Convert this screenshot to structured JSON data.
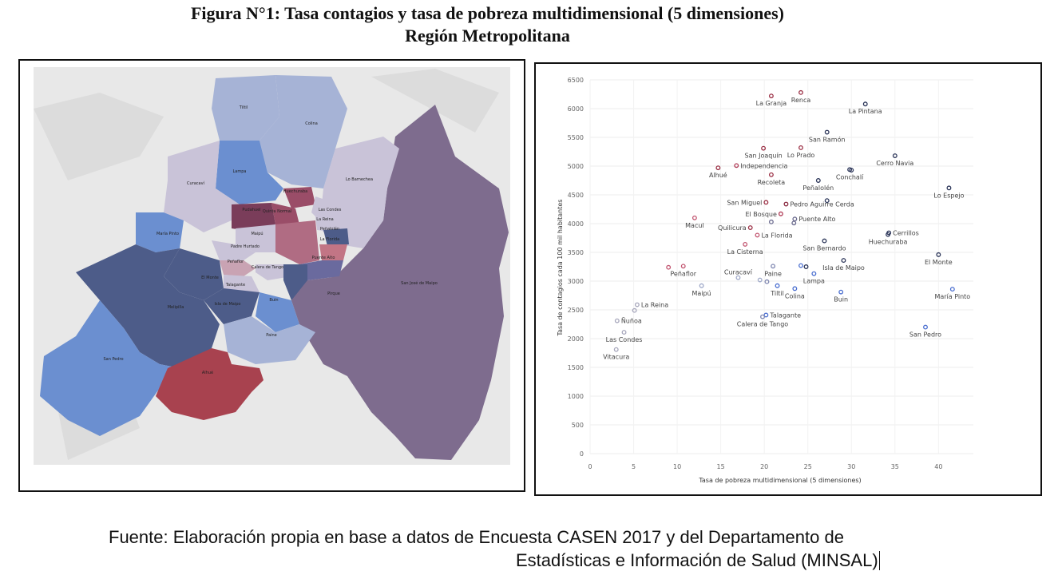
{
  "figure": {
    "title_line1": "Figura N°1: Tasa contagios y tasa de pobreza multidimensional (5 dimensiones)",
    "title_line2": "Región Metropolitana"
  },
  "source": {
    "line1": "Fuente: Elaboración propia en base a datos de Encuesta CASEN 2017 y del Departamento de",
    "line2": "Estadísticas e Información de Salud (MINSAL)"
  },
  "map": {
    "colors": {
      "high": "#a8424f",
      "dark": "#4d5c89",
      "mauve": "#7e6c8e",
      "blue": "#6b8fd0",
      "light": "#c9c3d8",
      "pale": "#a6b3d6",
      "base": "#e8e8e8"
    },
    "labels": [
      "Tiltil",
      "Colina",
      "Lampa",
      "Curacaví",
      "Lo Barnechea",
      "Huechuraba",
      "Pudahuel",
      "Quinta Normal",
      "Las Condes",
      "La Reina",
      "María Pinto",
      "Maipú",
      "Padre Hurtado",
      "Peñaflor",
      "Peñalolén",
      "La Florida",
      "Calera de Tango",
      "El Monte",
      "Talagante",
      "Puente Alto",
      "San José de Maipo",
      "Melipilla",
      "Isla de Maipo",
      "Buin",
      "Pirque",
      "Paine",
      "San Pedro",
      "Alhué"
    ]
  },
  "chart_data": {
    "type": "scatter",
    "title": "",
    "xlabel": "Tasa de pobreza multidimensional (5 dimensiones)",
    "ylabel": "Tasa de contagios cada 100 mil habitantes",
    "xlim": [
      0,
      44
    ],
    "ylim": [
      0,
      6500
    ],
    "xticks": [
      0,
      5,
      10,
      15,
      20,
      25,
      30,
      35,
      40
    ],
    "yticks": [
      0,
      500,
      1000,
      1500,
      2000,
      2500,
      3000,
      3500,
      4000,
      4500,
      5000,
      5500,
      6000,
      6500
    ],
    "grid": true,
    "legend": "none",
    "points": [
      {
        "label": "Renca",
        "x": 24.2,
        "y": 6280,
        "color": "#9b3045",
        "lp": "b"
      },
      {
        "label": "La Granja",
        "x": 20.8,
        "y": 6220,
        "color": "#9b3045",
        "lp": "b"
      },
      {
        "label": "La Pintana",
        "x": 31.6,
        "y": 6080,
        "color": "#2a3458",
        "lp": "b"
      },
      {
        "label": "San Ramón",
        "x": 27.2,
        "y": 5590,
        "color": "#2a3458",
        "lp": "b"
      },
      {
        "label": "San Joaquín",
        "x": 19.9,
        "y": 5310,
        "color": "#9b3045",
        "lp": "b"
      },
      {
        "label": "Lo Prado",
        "x": 24.2,
        "y": 5320,
        "color": "#9b3045",
        "lp": "b"
      },
      {
        "label": "Cerro Navia",
        "x": 35.0,
        "y": 5180,
        "color": "#2a3458",
        "lp": "b"
      },
      {
        "label": "Independencia",
        "x": 16.8,
        "y": 5010,
        "color": "#b03a55",
        "lp": "r"
      },
      {
        "label": "Alhué",
        "x": 14.7,
        "y": 4970,
        "color": "#9b3045",
        "lp": "b"
      },
      {
        "label": "Conchalí",
        "x": 29.8,
        "y": 4940,
        "color": "#2a3458",
        "lp": "b"
      },
      {
        "label": "Recoleta",
        "x": 20.8,
        "y": 4850,
        "color": "#9b3045",
        "lp": "b"
      },
      {
        "label": "Peñalolén",
        "x": 26.2,
        "y": 4750,
        "color": "#2a3458",
        "lp": "b"
      },
      {
        "label": "Lo Espejo",
        "x": 41.2,
        "y": 4620,
        "color": "#2a3458",
        "lp": "b"
      },
      {
        "label": "San Miguel",
        "x": 20.2,
        "y": 4370,
        "color": "#9b3045",
        "lp": "l"
      },
      {
        "label": "Pedro Aguirre Cerda",
        "x": 22.5,
        "y": 4340,
        "color": "#8a2a40",
        "lp": "r"
      },
      {
        "label": "El Bosque",
        "x": 21.9,
        "y": 4170,
        "color": "#b03a55",
        "lp": "l"
      },
      {
        "label": "Puente Alto",
        "x": 23.5,
        "y": 4080,
        "color": "#6a6a8e",
        "lp": "r"
      },
      {
        "label": "Macul",
        "x": 12.0,
        "y": 4100,
        "color": "#c25570",
        "lp": "b"
      },
      {
        "label": "Quilicura",
        "x": 18.4,
        "y": 3930,
        "color": "#9b3045",
        "lp": "l"
      },
      {
        "label": "La Florida",
        "x": 19.2,
        "y": 3800,
        "color": "#c25570",
        "lp": "r"
      },
      {
        "label": "Cerrillos",
        "x": 34.3,
        "y": 3840,
        "color": "#2a3458",
        "lp": "r"
      },
      {
        "label": "Huechuraba",
        "x": 34.2,
        "y": 3810,
        "color": "#2a3458",
        "lp": "b"
      },
      {
        "label": "San Bernardo",
        "x": 26.9,
        "y": 3700,
        "color": "#2a3458",
        "lp": "b"
      },
      {
        "label": "La Cisterna",
        "x": 17.8,
        "y": 3640,
        "color": "#c25570",
        "lp": "b"
      },
      {
        "label": "El Monte",
        "x": 40.0,
        "y": 3460,
        "color": "#2a3458",
        "lp": "b"
      },
      {
        "label": "Isla de Maipo",
        "x": 29.1,
        "y": 3360,
        "color": "#2a3458",
        "lp": "b"
      },
      {
        "label": "Peñaflor",
        "x": 10.7,
        "y": 3260,
        "color": "#c25570",
        "lp": "b"
      },
      {
        "label": "Curacaví",
        "x": 17.0,
        "y": 3060,
        "color": "#9ea8c8",
        "lp": "t"
      },
      {
        "label": "Paine",
        "x": 21.0,
        "y": 3260,
        "color": "#7e86b0",
        "lp": "b"
      },
      {
        "label": "Lampa",
        "x": 25.7,
        "y": 3130,
        "color": "#4a6ed0",
        "lp": "b"
      },
      {
        "label": "Tiltil",
        "x": 21.5,
        "y": 2920,
        "color": "#4a6ed0",
        "lp": "b"
      },
      {
        "label": "Colina",
        "x": 23.5,
        "y": 2870,
        "color": "#4a6ed0",
        "lp": "b"
      },
      {
        "label": "Maipú",
        "x": 12.8,
        "y": 2920,
        "color": "#9ea8c8",
        "lp": "b"
      },
      {
        "label": "Buin",
        "x": 28.8,
        "y": 2810,
        "color": "#4a6ed0",
        "lp": "b"
      },
      {
        "label": "María Pinto",
        "x": 41.6,
        "y": 2860,
        "color": "#4a6ed0",
        "lp": "b"
      },
      {
        "label": "La Reina",
        "x": 5.4,
        "y": 2590,
        "color": "#a6a6bb",
        "lp": "r"
      },
      {
        "label": "Ñuñoa",
        "x": 3.1,
        "y": 2310,
        "color": "#a6a6bb",
        "lp": "r"
      },
      {
        "label": "Talagante",
        "x": 20.2,
        "y": 2410,
        "color": "#4a6ed0",
        "lp": "r"
      },
      {
        "label": "Calera de Tango",
        "x": 19.8,
        "y": 2380,
        "color": "#7e86b0",
        "lp": "b"
      },
      {
        "label": "San Pedro",
        "x": 38.5,
        "y": 2200,
        "color": "#4a6ed0",
        "lp": "b"
      },
      {
        "label": "Las Condes",
        "x": 3.9,
        "y": 2110,
        "color": "#a6a6bb",
        "lp": "b"
      },
      {
        "label": "Vitacura",
        "x": 3.0,
        "y": 1810,
        "color": "#a6a6bb",
        "lp": "b"
      }
    ],
    "extra_points": [
      {
        "x": 5.1,
        "y": 2490,
        "color": "#a6a6bb"
      },
      {
        "x": 9.0,
        "y": 3240,
        "color": "#c25570"
      },
      {
        "x": 19.5,
        "y": 3020,
        "color": "#9ea8c8"
      },
      {
        "x": 20.3,
        "y": 2990,
        "color": "#7e86b0"
      },
      {
        "x": 20.8,
        "y": 4030,
        "color": "#6a6a8e"
      },
      {
        "x": 23.4,
        "y": 4010,
        "color": "#6a6a8e"
      },
      {
        "x": 24.2,
        "y": 3270,
        "color": "#4a6ed0"
      },
      {
        "x": 24.8,
        "y": 3250,
        "color": "#2a3458"
      },
      {
        "x": 30.0,
        "y": 4930,
        "color": "#2a3458"
      },
      {
        "x": 27.2,
        "y": 4400,
        "color": "#2a3458"
      }
    ]
  }
}
